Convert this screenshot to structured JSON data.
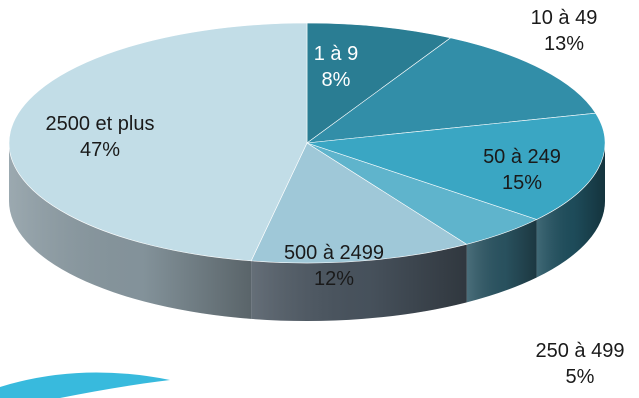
{
  "chart_data": {
    "type": "pie",
    "title": "",
    "three_d": true,
    "categories": [
      "1 à 9",
      "10 à 49",
      "50 à 249",
      "250 à 499",
      "500 à 2499",
      "2500 et plus"
    ],
    "values": [
      8,
      13,
      15,
      5,
      12,
      47
    ],
    "percent_labels": [
      "8%",
      "13%",
      "15%",
      "5%",
      "12%",
      "47%"
    ],
    "colors": [
      "#2a7d93",
      "#328ea8",
      "#3aa6c3",
      "#5fb4cc",
      "#9fc8d8",
      "#c2dde7"
    ],
    "side_colors": [
      "#1f5d6d",
      "#235f70",
      "#1f4f5e",
      "#2b5563",
      "#4a5560",
      "#8a9aa2"
    ],
    "legend": "none",
    "data_labels": "category and percent",
    "accent_color": "#1aa6cc"
  }
}
